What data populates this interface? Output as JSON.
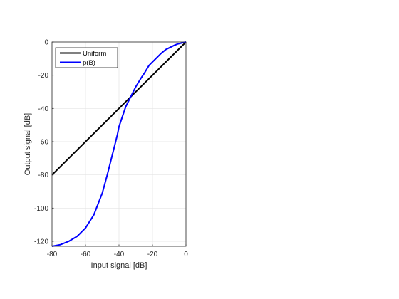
{
  "chart_data": {
    "type": "line",
    "title": "",
    "xlabel": "Input signal [dB]",
    "ylabel": "Output signal [dB]",
    "xlim": [
      -80,
      0
    ],
    "ylim": [
      -123,
      0
    ],
    "xticks": [
      -80,
      -60,
      -40,
      -20,
      0
    ],
    "yticks": [
      -120,
      -100,
      -80,
      -60,
      -40,
      -20,
      0
    ],
    "grid": true,
    "legend_position": "top-left",
    "series": [
      {
        "name": "Uniform",
        "color": "#000000",
        "x": [
          -80,
          0
        ],
        "y": [
          -80,
          0
        ]
      },
      {
        "name": "p(B)",
        "color": "#0000ff",
        "x": [
          -80,
          -75,
          -70,
          -65,
          -60,
          -55,
          -50,
          -47,
          -45,
          -43,
          -41,
          -40,
          -38,
          -36,
          -34,
          -32,
          -30,
          -27,
          -25,
          -22,
          -20,
          -17,
          -15,
          -12,
          -10,
          -7,
          -5,
          -3,
          -2,
          -1,
          0
        ],
        "y": [
          -123,
          -122,
          -120,
          -117,
          -112,
          -104,
          -91,
          -80,
          -72,
          -64,
          -56,
          -51,
          -45,
          -39,
          -35,
          -31,
          -27,
          -22,
          -19,
          -14,
          -12,
          -9,
          -7,
          -4.5,
          -3.5,
          -2,
          -1.2,
          -0.7,
          -0.4,
          -0.2,
          0
        ]
      }
    ]
  }
}
